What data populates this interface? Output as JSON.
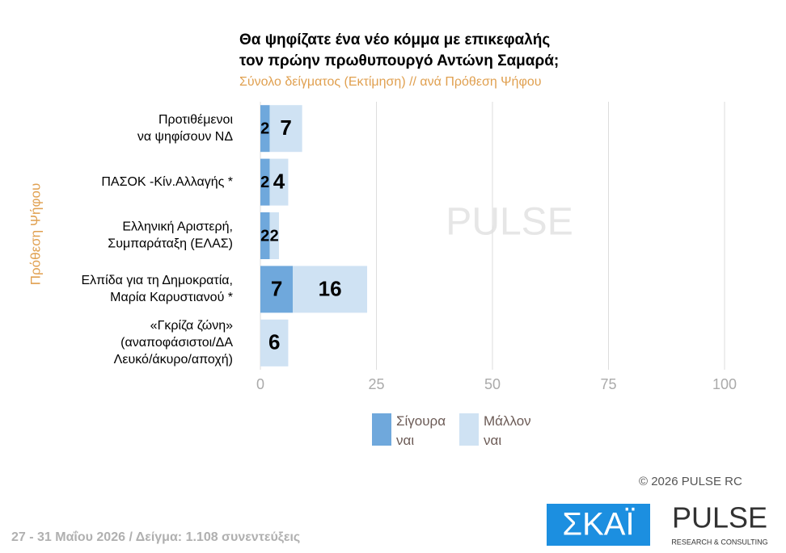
{
  "chart_data": {
    "type": "stacked-barh",
    "title": [
      "Θα ψηφίζατε ένα νέο κόμμα με επικεφαλής",
      "τον πρώην πρωθυπουργό Αντώνη Σαμαρά;"
    ],
    "subtitle": "Σύνολο δείγματος (Εκτίμηση) // ανά Πρόθεση Ψήφου",
    "ylabel": "Πρόθεση Ψήφου",
    "categories": [
      [
        "Προτιθέμενοι",
        "να ψηφίσουν ΝΔ"
      ],
      [
        "ΠΑΣΟΚ -Κίν.Αλλαγής *"
      ],
      [
        "Ελληνική Αριστερή,",
        "Συμπαράταξη (ΕΛΑΣ)"
      ],
      [
        "Ελπίδα για τη Δημοκρατία,",
        "Μαρία Καρυστιανού *"
      ],
      [
        "«Γκρίζα ζώνη»",
        "(αναποφάσιστοι/ΔΑ",
        "Λευκό/άκυρο/αποχή)"
      ]
    ],
    "series": [
      {
        "name": "Σίγουρα ναι",
        "color": "#6fa8dc",
        "values": [
          2,
          2,
          2,
          7,
          null
        ]
      },
      {
        "name": "Μάλλον ναι",
        "color": "#cfe2f3",
        "values": [
          7,
          4,
          2,
          16,
          6
        ]
      }
    ],
    "xlim": [
      0,
      100
    ],
    "xticks": [
      0,
      25,
      50,
      75,
      100
    ],
    "grid": true,
    "copyright": "© 2026 PULSE RC",
    "footer": "27 - 31 Μαΐου 2026 / Δείγμα: 1.108 συνεντεύξεις",
    "logos": {
      "skai": "ΣΚΑΪ",
      "pulse": "PULSE",
      "pulse_tag": "RESEARCH & CONSULTING"
    }
  }
}
